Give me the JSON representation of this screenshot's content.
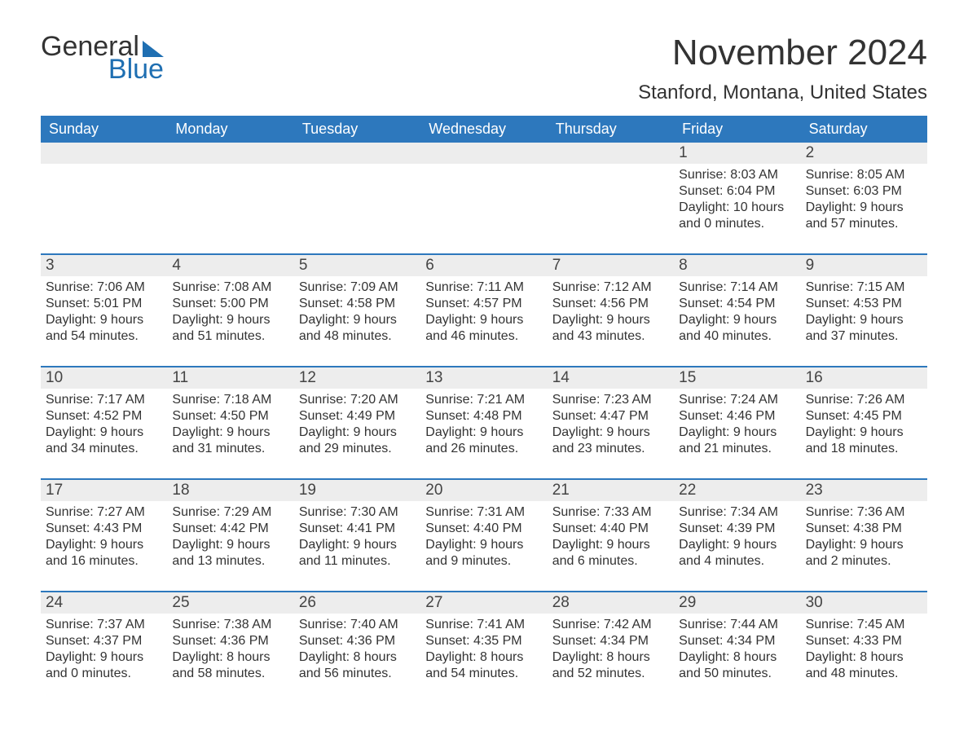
{
  "logo": {
    "word1": "General",
    "word2": "Blue"
  },
  "title": "November 2024",
  "location": "Stanford, Montana, United States",
  "colors": {
    "header_bg": "#2d78bd",
    "header_text": "#ffffff",
    "daynum_bg": "#ededed",
    "text": "#333333",
    "border": "#2d78bd",
    "logo_blue": "#1f6fb2",
    "page_bg": "#ffffff"
  },
  "typography": {
    "title_fontsize": 44,
    "location_fontsize": 24,
    "weekday_fontsize": 18,
    "daynum_fontsize": 19,
    "info_fontsize": 16,
    "logo_fontsize": 34
  },
  "layout": {
    "columns": 7,
    "rows": 5,
    "cell_min_height": 120
  },
  "labels": {
    "sunrise": "Sunrise:",
    "sunset": "Sunset:",
    "daylight": "Daylight:"
  },
  "weekdays": [
    "Sunday",
    "Monday",
    "Tuesday",
    "Wednesday",
    "Thursday",
    "Friday",
    "Saturday"
  ],
  "weeks": [
    [
      null,
      null,
      null,
      null,
      null,
      {
        "n": "1",
        "sunrise": "8:03 AM",
        "sunset": "6:04 PM",
        "daylight": "10 hours and 0 minutes."
      },
      {
        "n": "2",
        "sunrise": "8:05 AM",
        "sunset": "6:03 PM",
        "daylight": "9 hours and 57 minutes."
      }
    ],
    [
      {
        "n": "3",
        "sunrise": "7:06 AM",
        "sunset": "5:01 PM",
        "daylight": "9 hours and 54 minutes."
      },
      {
        "n": "4",
        "sunrise": "7:08 AM",
        "sunset": "5:00 PM",
        "daylight": "9 hours and 51 minutes."
      },
      {
        "n": "5",
        "sunrise": "7:09 AM",
        "sunset": "4:58 PM",
        "daylight": "9 hours and 48 minutes."
      },
      {
        "n": "6",
        "sunrise": "7:11 AM",
        "sunset": "4:57 PM",
        "daylight": "9 hours and 46 minutes."
      },
      {
        "n": "7",
        "sunrise": "7:12 AM",
        "sunset": "4:56 PM",
        "daylight": "9 hours and 43 minutes."
      },
      {
        "n": "8",
        "sunrise": "7:14 AM",
        "sunset": "4:54 PM",
        "daylight": "9 hours and 40 minutes."
      },
      {
        "n": "9",
        "sunrise": "7:15 AM",
        "sunset": "4:53 PM",
        "daylight": "9 hours and 37 minutes."
      }
    ],
    [
      {
        "n": "10",
        "sunrise": "7:17 AM",
        "sunset": "4:52 PM",
        "daylight": "9 hours and 34 minutes."
      },
      {
        "n": "11",
        "sunrise": "7:18 AM",
        "sunset": "4:50 PM",
        "daylight": "9 hours and 31 minutes."
      },
      {
        "n": "12",
        "sunrise": "7:20 AM",
        "sunset": "4:49 PM",
        "daylight": "9 hours and 29 minutes."
      },
      {
        "n": "13",
        "sunrise": "7:21 AM",
        "sunset": "4:48 PM",
        "daylight": "9 hours and 26 minutes."
      },
      {
        "n": "14",
        "sunrise": "7:23 AM",
        "sunset": "4:47 PM",
        "daylight": "9 hours and 23 minutes."
      },
      {
        "n": "15",
        "sunrise": "7:24 AM",
        "sunset": "4:46 PM",
        "daylight": "9 hours and 21 minutes."
      },
      {
        "n": "16",
        "sunrise": "7:26 AM",
        "sunset": "4:45 PM",
        "daylight": "9 hours and 18 minutes."
      }
    ],
    [
      {
        "n": "17",
        "sunrise": "7:27 AM",
        "sunset": "4:43 PM",
        "daylight": "9 hours and 16 minutes."
      },
      {
        "n": "18",
        "sunrise": "7:29 AM",
        "sunset": "4:42 PM",
        "daylight": "9 hours and 13 minutes."
      },
      {
        "n": "19",
        "sunrise": "7:30 AM",
        "sunset": "4:41 PM",
        "daylight": "9 hours and 11 minutes."
      },
      {
        "n": "20",
        "sunrise": "7:31 AM",
        "sunset": "4:40 PM",
        "daylight": "9 hours and 9 minutes."
      },
      {
        "n": "21",
        "sunrise": "7:33 AM",
        "sunset": "4:40 PM",
        "daylight": "9 hours and 6 minutes."
      },
      {
        "n": "22",
        "sunrise": "7:34 AM",
        "sunset": "4:39 PM",
        "daylight": "9 hours and 4 minutes."
      },
      {
        "n": "23",
        "sunrise": "7:36 AM",
        "sunset": "4:38 PM",
        "daylight": "9 hours and 2 minutes."
      }
    ],
    [
      {
        "n": "24",
        "sunrise": "7:37 AM",
        "sunset": "4:37 PM",
        "daylight": "9 hours and 0 minutes."
      },
      {
        "n": "25",
        "sunrise": "7:38 AM",
        "sunset": "4:36 PM",
        "daylight": "8 hours and 58 minutes."
      },
      {
        "n": "26",
        "sunrise": "7:40 AM",
        "sunset": "4:36 PM",
        "daylight": "8 hours and 56 minutes."
      },
      {
        "n": "27",
        "sunrise": "7:41 AM",
        "sunset": "4:35 PM",
        "daylight": "8 hours and 54 minutes."
      },
      {
        "n": "28",
        "sunrise": "7:42 AM",
        "sunset": "4:34 PM",
        "daylight": "8 hours and 52 minutes."
      },
      {
        "n": "29",
        "sunrise": "7:44 AM",
        "sunset": "4:34 PM",
        "daylight": "8 hours and 50 minutes."
      },
      {
        "n": "30",
        "sunrise": "7:45 AM",
        "sunset": "4:33 PM",
        "daylight": "8 hours and 48 minutes."
      }
    ]
  ]
}
